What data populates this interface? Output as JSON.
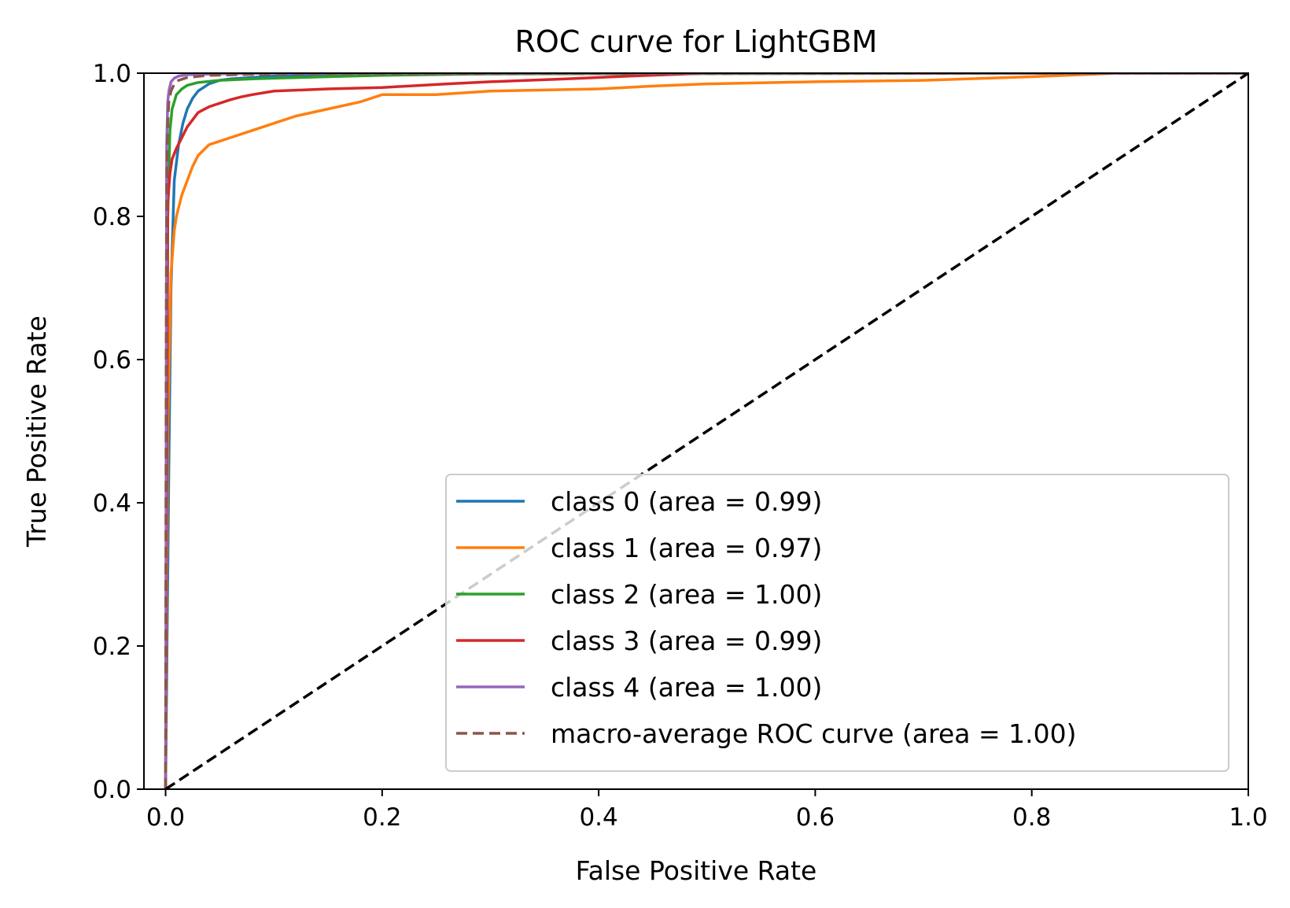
{
  "chart_data": {
    "type": "line",
    "title": "ROC curve for LightGBM",
    "xlabel": "False Positive Rate",
    "ylabel": "True Positive Rate",
    "xlim": [
      -0.02,
      1.0
    ],
    "ylim": [
      0.0,
      1.0
    ],
    "xticks": [
      "0.0",
      "0.2",
      "0.4",
      "0.6",
      "0.8",
      "1.0"
    ],
    "yticks": [
      "0.0",
      "0.2",
      "0.4",
      "0.6",
      "0.8",
      "1.0"
    ],
    "grid": false,
    "legend_position": "lower-right",
    "series": [
      {
        "name": "class 0 (area = 0.99)",
        "color": "#1f77b4",
        "style": "solid",
        "x": [
          0,
          0.003,
          0.005,
          0.008,
          0.012,
          0.016,
          0.02,
          0.025,
          0.03,
          0.035,
          0.04,
          0.05,
          0.06,
          0.08,
          0.1,
          0.15,
          0.2,
          0.3,
          0.5,
          1.0
        ],
        "y": [
          0,
          0.45,
          0.7,
          0.85,
          0.9,
          0.93,
          0.95,
          0.965,
          0.975,
          0.98,
          0.985,
          0.99,
          0.992,
          0.994,
          0.996,
          0.997,
          0.998,
          0.999,
          1.0,
          1.0
        ]
      },
      {
        "name": "class 1 (area = 0.97)",
        "color": "#ff7f0e",
        "style": "solid",
        "x": [
          0,
          0.002,
          0.005,
          0.008,
          0.01,
          0.015,
          0.02,
          0.025,
          0.03,
          0.04,
          0.05,
          0.06,
          0.08,
          0.1,
          0.12,
          0.15,
          0.18,
          0.2,
          0.25,
          0.3,
          0.4,
          0.45,
          0.5,
          0.6,
          0.7,
          0.8,
          0.88,
          1.0
        ],
        "y": [
          0,
          0.5,
          0.72,
          0.78,
          0.8,
          0.83,
          0.85,
          0.87,
          0.885,
          0.9,
          0.905,
          0.91,
          0.92,
          0.93,
          0.94,
          0.95,
          0.96,
          0.97,
          0.97,
          0.975,
          0.978,
          0.982,
          0.985,
          0.988,
          0.99,
          0.995,
          1.0,
          1.0
        ]
      },
      {
        "name": "class 2 (area = 1.00)",
        "color": "#2ca02c",
        "style": "solid",
        "x": [
          0,
          0.002,
          0.004,
          0.006,
          0.008,
          0.01,
          0.015,
          0.02,
          0.03,
          0.05,
          0.08,
          0.1,
          0.15,
          0.2,
          0.3,
          1.0
        ],
        "y": [
          0,
          0.8,
          0.92,
          0.95,
          0.96,
          0.97,
          0.978,
          0.983,
          0.987,
          0.99,
          0.992,
          0.993,
          0.995,
          0.997,
          0.999,
          1.0
        ]
      },
      {
        "name": "class 3 (area = 0.99)",
        "color": "#d62728",
        "style": "solid",
        "x": [
          0,
          0.002,
          0.004,
          0.006,
          0.01,
          0.015,
          0.02,
          0.025,
          0.03,
          0.04,
          0.05,
          0.06,
          0.07,
          0.08,
          0.1,
          0.15,
          0.2,
          0.26,
          0.3,
          0.37,
          0.43,
          0.5,
          1.0
        ],
        "y": [
          0,
          0.82,
          0.86,
          0.88,
          0.895,
          0.91,
          0.925,
          0.935,
          0.945,
          0.953,
          0.958,
          0.963,
          0.967,
          0.97,
          0.975,
          0.978,
          0.98,
          0.985,
          0.988,
          0.992,
          0.996,
          1.0,
          1.0
        ]
      },
      {
        "name": "class 4 (area = 1.00)",
        "color": "#9467bd",
        "style": "solid",
        "x": [
          0,
          0.001,
          0.002,
          0.003,
          0.005,
          0.008,
          0.012,
          0.02,
          0.05,
          0.1,
          1.0
        ],
        "y": [
          0,
          0.9,
          0.96,
          0.975,
          0.988,
          0.993,
          0.996,
          0.998,
          0.999,
          1.0,
          1.0
        ]
      },
      {
        "name": "macro-average ROC curve (area = 1.00)",
        "color": "#8c564b",
        "style": "dashed",
        "x": [
          0,
          0.0005,
          0.001,
          0.002,
          0.003,
          0.005,
          0.008,
          0.012,
          0.02,
          0.04,
          0.1,
          0.9,
          1.0
        ],
        "y": [
          0,
          0.6,
          0.85,
          0.93,
          0.96,
          0.975,
          0.985,
          0.99,
          0.994,
          0.997,
          0.999,
          1.0,
          1.0
        ]
      },
      {
        "name": "",
        "color": "#000000",
        "style": "dashed",
        "x": [
          0,
          1.0
        ],
        "y": [
          0,
          1.0
        ]
      }
    ]
  }
}
